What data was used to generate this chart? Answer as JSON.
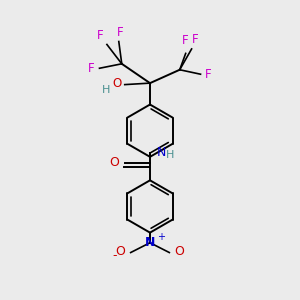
{
  "bg_color": "#ebebeb",
  "atom_colors": {
    "C": "#000000",
    "H": "#4a9090",
    "O": "#cc0000",
    "N": "#0000cc",
    "F": "#cc00cc"
  },
  "figsize": [
    3.0,
    3.0
  ],
  "dpi": 100
}
